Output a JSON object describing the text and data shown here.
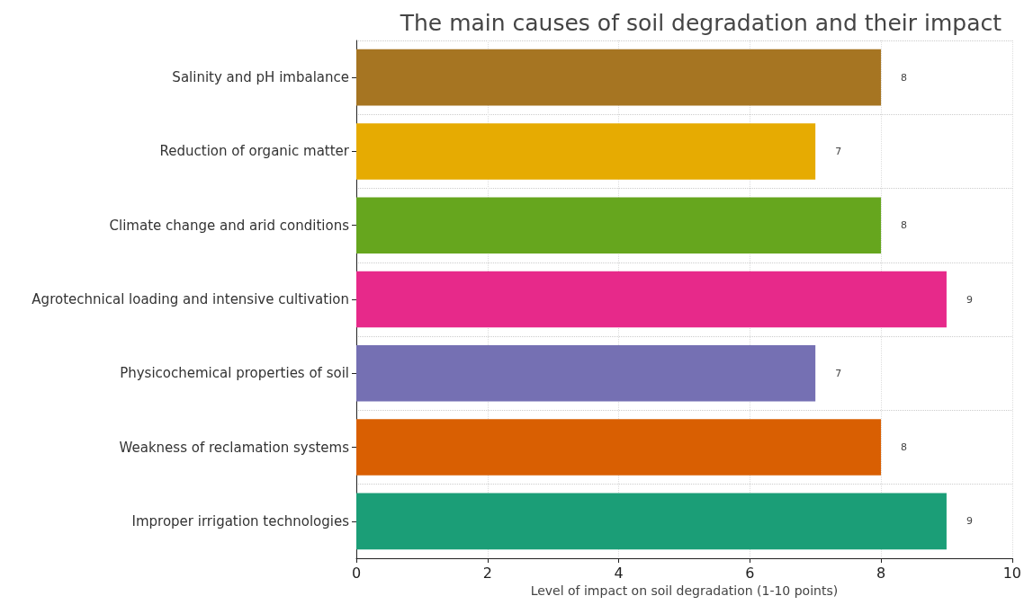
{
  "chart_data": {
    "type": "bar",
    "orientation": "horizontal",
    "title": "The main causes of soil degradation and their impact",
    "xlabel": "Level of impact on soil degradation (1-10 points)",
    "categories": [
      "Salinity and pH imbalance",
      "Reduction of organic matter",
      "Climate change and arid conditions",
      "Agrotechnical loading and intensive cultivation",
      "Physicochemical properties of soil",
      "Weakness of reclamation systems",
      "Improper irrigation technologies"
    ],
    "values": [
      8,
      7,
      8,
      9,
      7,
      8,
      9
    ],
    "colors": [
      "#a67522",
      "#e6ab02",
      "#66a61e",
      "#e7298a",
      "#7570b3",
      "#d95f02",
      "#1b9e77"
    ],
    "xlim": [
      0,
      10
    ],
    "xticks": [
      0,
      2,
      4,
      6,
      8,
      10
    ],
    "grid": true,
    "data_labels": true
  }
}
